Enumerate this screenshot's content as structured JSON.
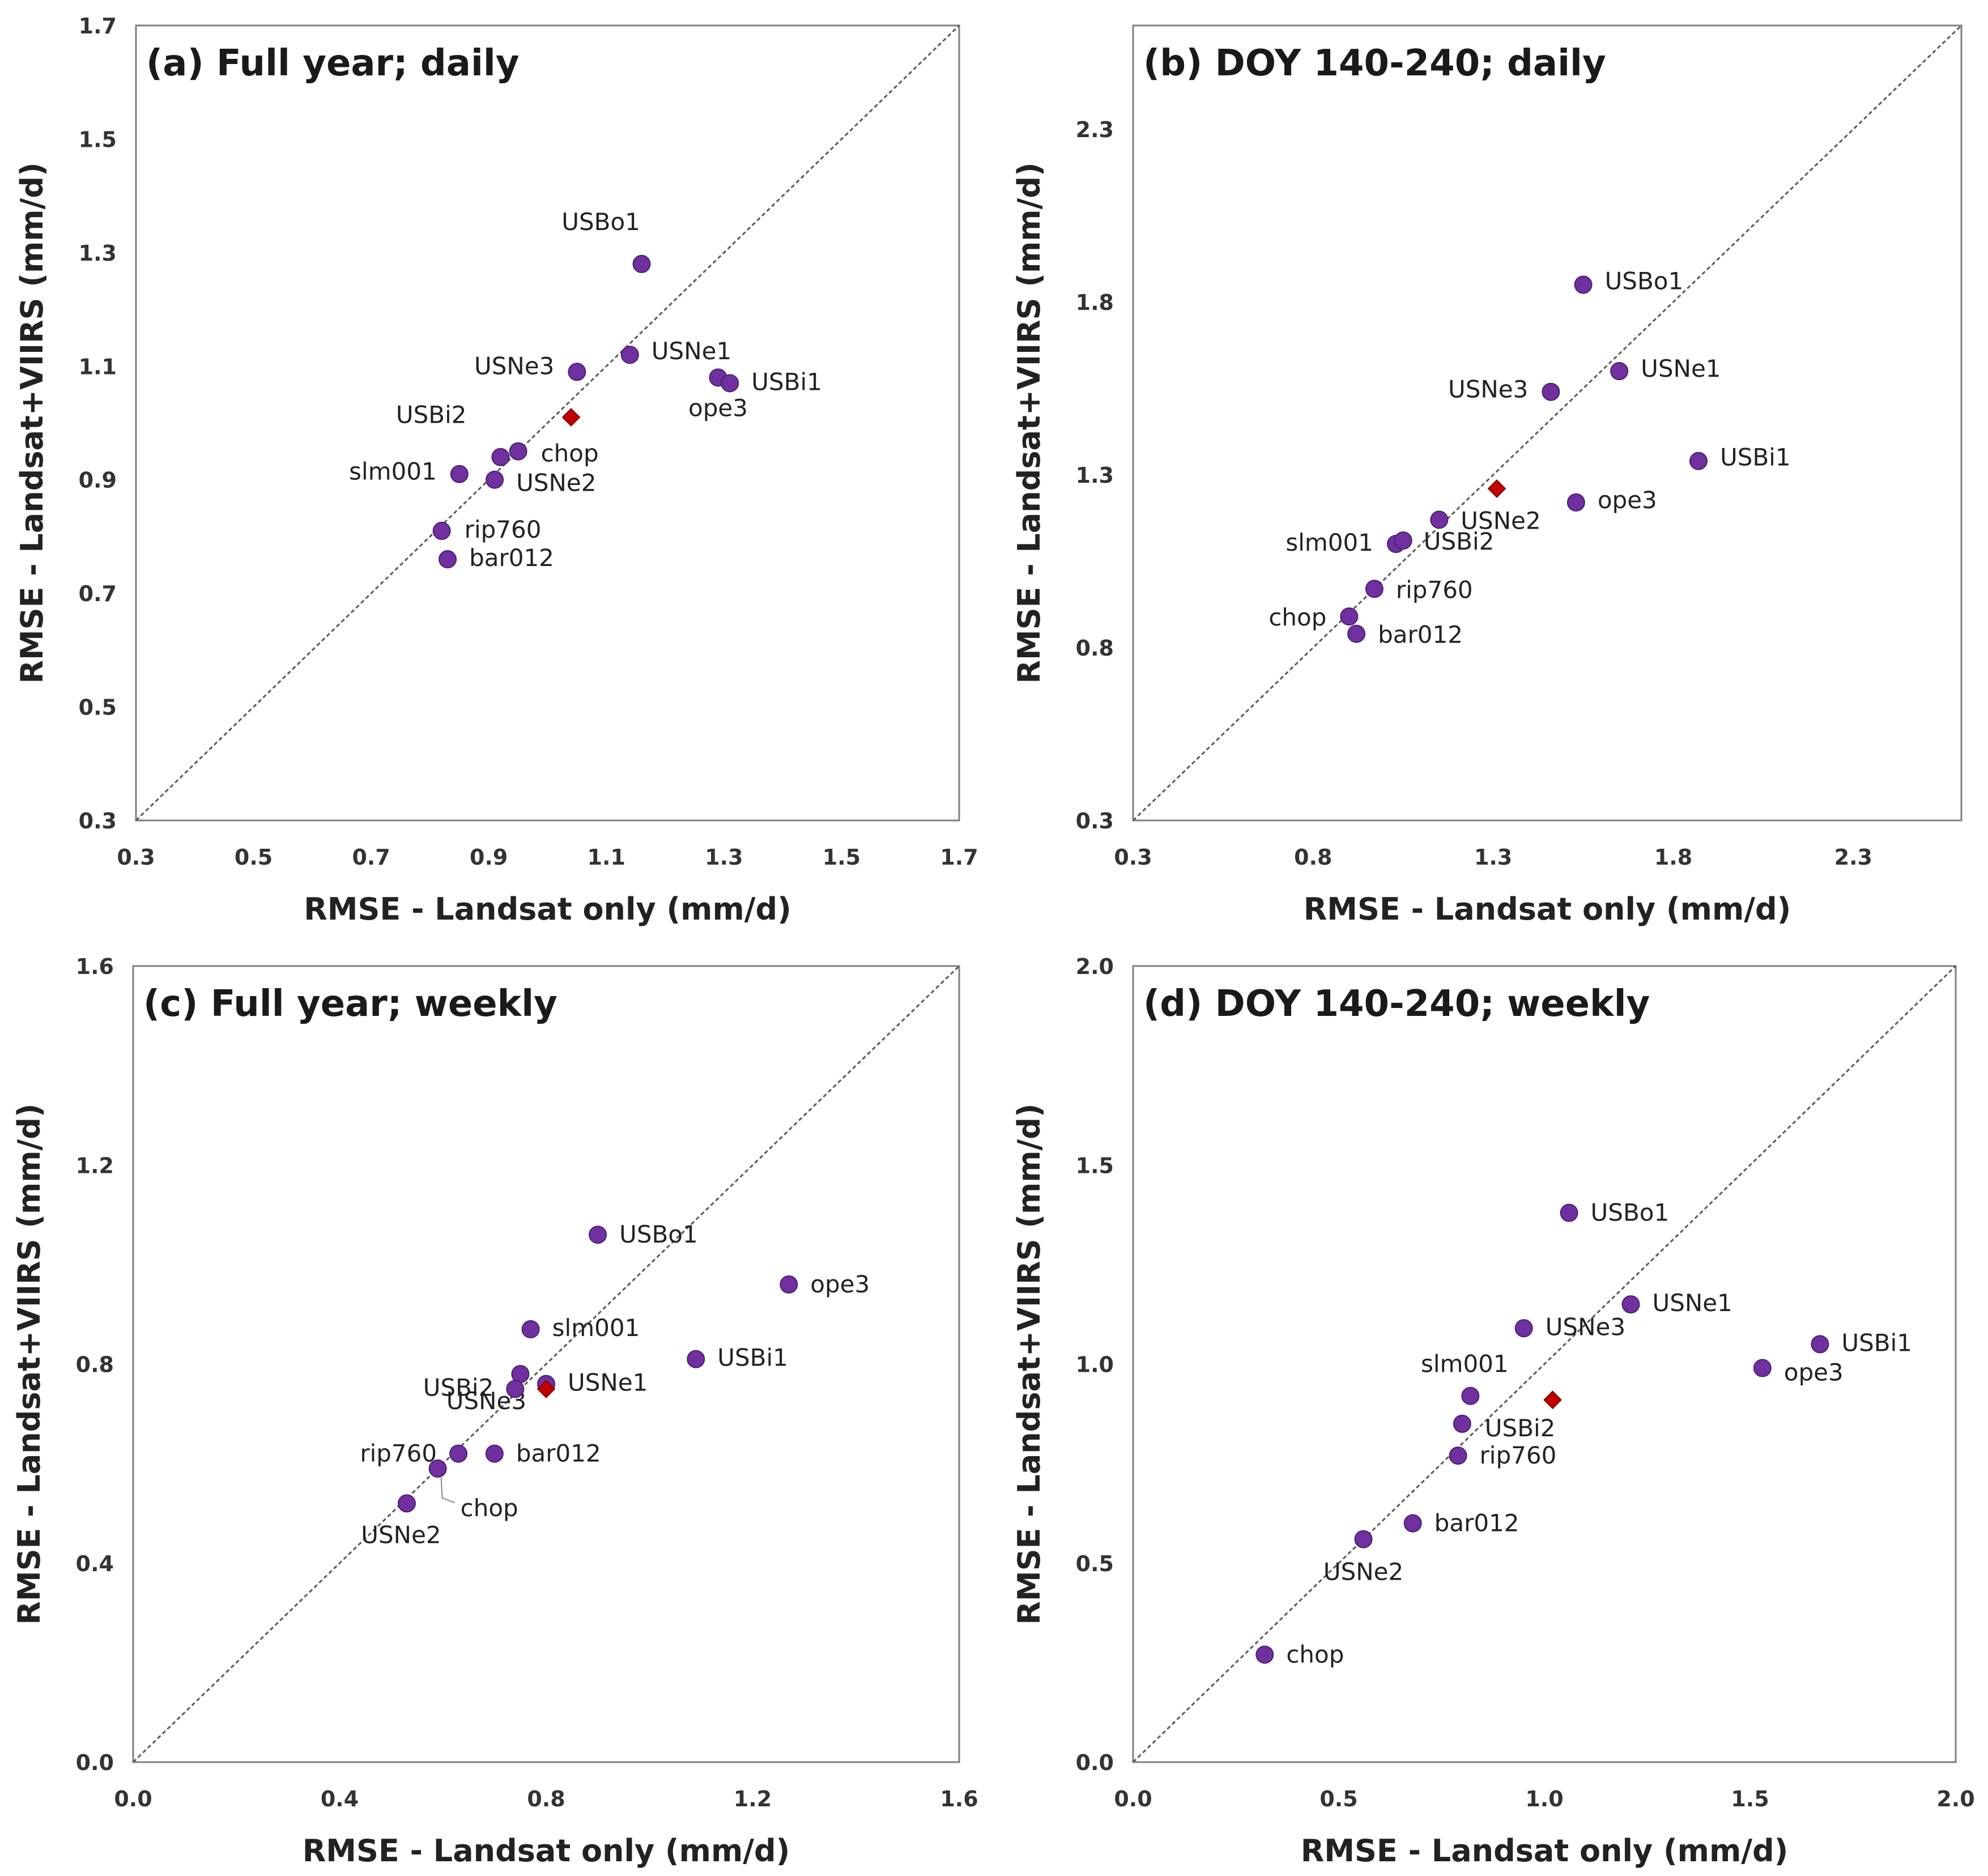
{
  "figure": {
    "description_free": true
  },
  "chart_data": [
    {
      "type": "scatter",
      "title": "(a) Full year; daily",
      "xlabel": "RMSE - Landsat only (mm/d)",
      "ylabel": "RMSE - Landsat+VIIRS (mm/d)",
      "xlim": [
        0.3,
        1.7
      ],
      "ylim": [
        0.3,
        1.7
      ],
      "xticks": [
        "0.3",
        "0.5",
        "0.7",
        "0.9",
        "1.1",
        "1.3",
        "1.5",
        "1.7"
      ],
      "yticks": [
        "0.3",
        "0.5",
        "0.7",
        "0.9",
        "1.1",
        "1.3",
        "1.5",
        "1.7"
      ],
      "reference_line": "1:1",
      "points": [
        {
          "label": "USBo1",
          "x": 1.16,
          "y": 1.28
        },
        {
          "label": "USNe1",
          "x": 1.14,
          "y": 1.12
        },
        {
          "label": "USNe3",
          "x": 1.05,
          "y": 1.09
        },
        {
          "label": "ope3",
          "x": 1.29,
          "y": 1.08
        },
        {
          "label": "USBi1",
          "x": 1.31,
          "y": 1.07
        },
        {
          "label": "USBi2",
          "x": 0.92,
          "y": 0.94
        },
        {
          "label": "chop",
          "x": 0.95,
          "y": 0.95
        },
        {
          "label": "slm001",
          "x": 0.85,
          "y": 0.91
        },
        {
          "label": "USNe2",
          "x": 0.91,
          "y": 0.9
        },
        {
          "label": "rip760",
          "x": 0.82,
          "y": 0.81
        },
        {
          "label": "bar012",
          "x": 0.83,
          "y": 0.76
        }
      ],
      "mean_point": {
        "x": 1.04,
        "y": 1.01
      }
    },
    {
      "type": "scatter",
      "title": "(b) DOY 140-240; daily",
      "xlabel": "RMSE - Landsat only (mm/d)",
      "ylabel": "RMSE - Landsat+VIIRS (mm/d)",
      "xlim": [
        0.3,
        2.6
      ],
      "ylim": [
        0.3,
        2.6
      ],
      "xticks": [
        "0.3",
        "0.8",
        "1.3",
        "1.8",
        "2.3"
      ],
      "yticks": [
        "0.3",
        "0.8",
        "1.3",
        "1.8",
        "2.3"
      ],
      "reference_line": "1:1",
      "points": [
        {
          "label": "USBo1",
          "x": 1.55,
          "y": 1.85
        },
        {
          "label": "USNe1",
          "x": 1.65,
          "y": 1.6
        },
        {
          "label": "USNe3",
          "x": 1.46,
          "y": 1.54
        },
        {
          "label": "USBi1",
          "x": 1.87,
          "y": 1.34
        },
        {
          "label": "ope3",
          "x": 1.53,
          "y": 1.22
        },
        {
          "label": "USNe2",
          "x": 1.15,
          "y": 1.17
        },
        {
          "label": "slm001",
          "x": 1.03,
          "y": 1.1
        },
        {
          "label": "USBi2",
          "x": 1.05,
          "y": 1.11
        },
        {
          "label": "rip760",
          "x": 0.97,
          "y": 0.97
        },
        {
          "label": "chop",
          "x": 0.9,
          "y": 0.89
        },
        {
          "label": "bar012",
          "x": 0.92,
          "y": 0.84
        }
      ],
      "mean_point": {
        "x": 1.31,
        "y": 1.26
      }
    },
    {
      "type": "scatter",
      "title": "(c) Full year; weekly",
      "xlabel": "RMSE - Landsat only (mm/d)",
      "ylabel": "RMSE - Landsat+VIIRS (mm/d)",
      "xlim": [
        0.0,
        1.6
      ],
      "ylim": [
        0.0,
        1.6
      ],
      "xticks": [
        "0.0",
        "0.4",
        "0.8",
        "1.2",
        "1.6"
      ],
      "yticks": [
        "0.0",
        "0.4",
        "0.8",
        "1.2",
        "1.6"
      ],
      "reference_line": "1:1",
      "points": [
        {
          "label": "USBo1",
          "x": 0.9,
          "y": 1.06
        },
        {
          "label": "ope3",
          "x": 1.27,
          "y": 0.96
        },
        {
          "label": "slm001",
          "x": 0.77,
          "y": 0.87
        },
        {
          "label": "USBi1",
          "x": 1.09,
          "y": 0.81
        },
        {
          "label": "USNe3",
          "x": 0.75,
          "y": 0.78
        },
        {
          "label": "USBi2",
          "x": 0.74,
          "y": 0.75
        },
        {
          "label": "USNe1",
          "x": 0.8,
          "y": 0.76
        },
        {
          "label": "rip760",
          "x": 0.63,
          "y": 0.62
        },
        {
          "label": "bar012",
          "x": 0.7,
          "y": 0.62
        },
        {
          "label": "chop",
          "x": 0.59,
          "y": 0.59
        },
        {
          "label": "USNe2",
          "x": 0.53,
          "y": 0.52
        }
      ],
      "mean_point": {
        "x": 0.8,
        "y": 0.75
      }
    },
    {
      "type": "scatter",
      "title": "(d) DOY 140-240; weekly",
      "xlabel": "RMSE - Landsat only (mm/d)",
      "ylabel": "RMSE - Landsat+VIIRS (mm/d)",
      "xlim": [
        0.0,
        2.0
      ],
      "ylim": [
        0.0,
        2.0
      ],
      "xticks": [
        "0.0",
        "0.5",
        "1.0",
        "1.5",
        "2.0"
      ],
      "yticks": [
        "0.0",
        "0.5",
        "1.0",
        "1.5",
        "2.0"
      ],
      "reference_line": "1:1",
      "points": [
        {
          "label": "USBo1",
          "x": 1.06,
          "y": 1.38
        },
        {
          "label": "USNe1",
          "x": 1.21,
          "y": 1.15
        },
        {
          "label": "USNe3",
          "x": 0.95,
          "y": 1.09
        },
        {
          "label": "USBi1",
          "x": 1.67,
          "y": 1.05
        },
        {
          "label": "ope3",
          "x": 1.53,
          "y": 0.99
        },
        {
          "label": "slm001",
          "x": 0.82,
          "y": 0.92
        },
        {
          "label": "USBi2",
          "x": 0.8,
          "y": 0.85
        },
        {
          "label": "rip760",
          "x": 0.79,
          "y": 0.77
        },
        {
          "label": "bar012",
          "x": 0.68,
          "y": 0.6
        },
        {
          "label": "USNe2",
          "x": 0.56,
          "y": 0.56
        },
        {
          "label": "chop",
          "x": 0.32,
          "y": 0.27
        }
      ],
      "mean_point": {
        "x": 1.02,
        "y": 0.91
      }
    }
  ],
  "colors": {
    "point": "#7030a0",
    "point_edge": "#4b1f6f",
    "mean": "#c00000",
    "frame": "#7f7f7f",
    "diagonal": "#595959"
  }
}
